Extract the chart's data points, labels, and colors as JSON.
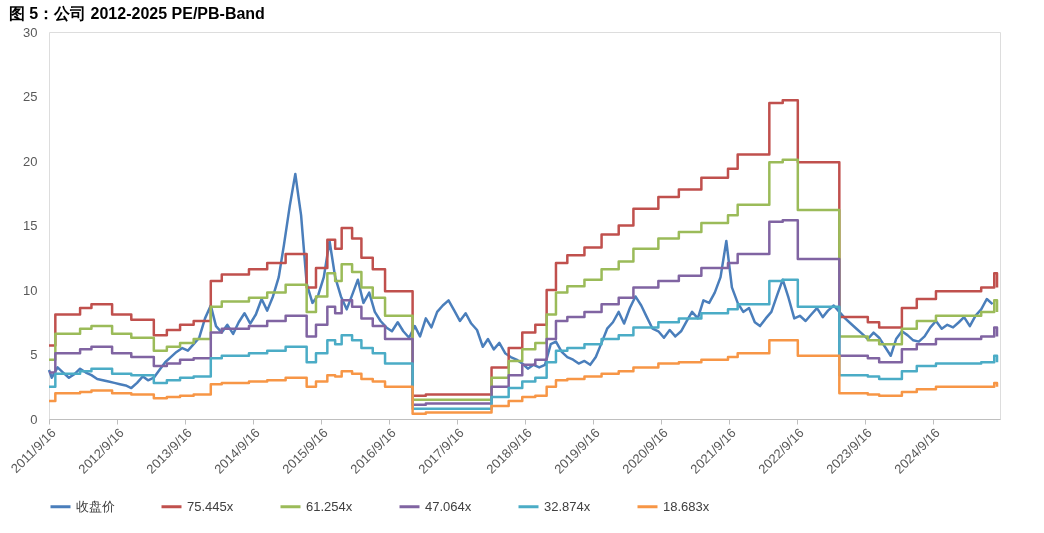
{
  "chart_data": {
    "type": "line",
    "title": "图 5：公司 2012-2025 PE/PB-Band",
    "xlim": [
      "2011-09-16",
      "2025-09-10"
    ],
    "ylim": [
      0,
      30
    ],
    "yticks": [
      0,
      5,
      10,
      15,
      20,
      25,
      30
    ],
    "xticks": [
      {
        "value": "2011-09-16",
        "label": "2011/9/16"
      },
      {
        "value": "2012-09-16",
        "label": "2012/9/16"
      },
      {
        "value": "2013-09-16",
        "label": "2013/9/16"
      },
      {
        "value": "2014-09-16",
        "label": "2014/9/16"
      },
      {
        "value": "2015-09-16",
        "label": "2015/9/16"
      },
      {
        "value": "2016-09-16",
        "label": "2016/9/16"
      },
      {
        "value": "2017-09-16",
        "label": "2017/9/16"
      },
      {
        "value": "2018-09-16",
        "label": "2018/9/16"
      },
      {
        "value": "2019-09-16",
        "label": "2019/9/16"
      },
      {
        "value": "2020-09-16",
        "label": "2020/9/16"
      },
      {
        "value": "2021-09-16",
        "label": "2021/9/16"
      },
      {
        "value": "2022-09-16",
        "label": "2022/9/16"
      },
      {
        "value": "2023-09-16",
        "label": "2023/9/16"
      },
      {
        "value": "2024-09-16",
        "label": "2024/9/16"
      }
    ],
    "grid": false,
    "legend": "bottom",
    "line_style": "solid",
    "marker": "none",
    "series": [
      {
        "name": "收盘价",
        "type": "line",
        "color": "#4a7ebb",
        "x": [
          "2011-09-16",
          "2011-10",
          "2011-11",
          "2011-12",
          "2012-01",
          "2012-02",
          "2012-03",
          "2012-04",
          "2012-05",
          "2012-06",
          "2012-07",
          "2012-08",
          "2012-09",
          "2012-10",
          "2012-11",
          "2012-12",
          "2013-01",
          "2013-02",
          "2013-03",
          "2013-04",
          "2013-05",
          "2013-06",
          "2013-07",
          "2013-08",
          "2013-09",
          "2013-10",
          "2013-11",
          "2013-12",
          "2014-01",
          "2014-02",
          "2014-03",
          "2014-04",
          "2014-05",
          "2014-06",
          "2014-07",
          "2014-08",
          "2014-09",
          "2014-10",
          "2014-11",
          "2014-12",
          "2015-01",
          "2015-02",
          "2015-03",
          "2015-04",
          "2015-05",
          "2015-05-20",
          "2015-06",
          "2015-07",
          "2015-08",
          "2015-09",
          "2015-10",
          "2015-11",
          "2015-12",
          "2016-01",
          "2016-02",
          "2016-03",
          "2016-04",
          "2016-05",
          "2016-06",
          "2016-07",
          "2016-08",
          "2016-09",
          "2016-10",
          "2016-11",
          "2016-12",
          "2017-01",
          "2017-02",
          "2017-03",
          "2017-04",
          "2017-05",
          "2017-06",
          "2017-07",
          "2017-08",
          "2017-09",
          "2017-10",
          "2017-11",
          "2017-12",
          "2018-01",
          "2018-02",
          "2018-03",
          "2018-04",
          "2018-05",
          "2018-06",
          "2018-07",
          "2018-08",
          "2018-09",
          "2018-10",
          "2018-11",
          "2018-12",
          "2019-01",
          "2019-02",
          "2019-03",
          "2019-04",
          "2019-05",
          "2019-06",
          "2019-07",
          "2019-08",
          "2019-09",
          "2019-10",
          "2019-11",
          "2019-12",
          "2020-01",
          "2020-02",
          "2020-03",
          "2020-04",
          "2020-05",
          "2020-06",
          "2020-07",
          "2020-08",
          "2020-09",
          "2020-10",
          "2020-11",
          "2020-12",
          "2021-01",
          "2021-02",
          "2021-03",
          "2021-04",
          "2021-05",
          "2021-06",
          "2021-07",
          "2021-08",
          "2021-09",
          "2021-10",
          "2021-11",
          "2021-12",
          "2022-01",
          "2022-02",
          "2022-03",
          "2022-04",
          "2022-05",
          "2022-06",
          "2022-07",
          "2022-08",
          "2022-09",
          "2022-10",
          "2022-11",
          "2022-12",
          "2023-01",
          "2023-02",
          "2023-03",
          "2023-04",
          "2023-05",
          "2023-06",
          "2023-07",
          "2023-08",
          "2023-09",
          "2023-10",
          "2023-11",
          "2023-12",
          "2024-01",
          "2024-02",
          "2024-03",
          "2024-04",
          "2024-05",
          "2024-06",
          "2024-07",
          "2024-08",
          "2024-09",
          "2024-10",
          "2024-11",
          "2024-12",
          "2025-01",
          "2025-02",
          "2025-03",
          "2025-04",
          "2025-05",
          "2025-06",
          "2025-07",
          "2025-08"
        ],
        "values": [
          3.8,
          3.2,
          4.0,
          3.6,
          3.2,
          3.5,
          3.9,
          3.6,
          3.4,
          3.1,
          3.0,
          2.9,
          2.8,
          2.7,
          2.6,
          2.4,
          2.8,
          3.3,
          3.0,
          3.2,
          3.8,
          4.4,
          4.8,
          5.2,
          5.5,
          5.3,
          5.8,
          6.3,
          7.8,
          8.8,
          7.2,
          6.7,
          7.3,
          6.6,
          7.5,
          8.2,
          7.4,
          8.1,
          9.3,
          8.4,
          9.5,
          11.0,
          13.5,
          16.5,
          19.0,
          17.0,
          15.8,
          10.5,
          9.0,
          9.6,
          11.0,
          13.8,
          11.0,
          9.5,
          8.5,
          9.6,
          10.8,
          9.0,
          9.8,
          8.3,
          7.6,
          7.1,
          6.8,
          7.5,
          6.8,
          6.3,
          7.2,
          6.4,
          7.8,
          7.1,
          8.3,
          8.8,
          9.2,
          8.4,
          7.6,
          8.2,
          7.4,
          6.9,
          5.6,
          6.2,
          5.4,
          5.9,
          5.1,
          4.8,
          4.6,
          4.3,
          3.9,
          4.2,
          4.0,
          4.2,
          5.8,
          6.0,
          5.2,
          4.8,
          4.6,
          4.3,
          4.5,
          4.2,
          4.8,
          5.9,
          7.0,
          7.5,
          8.3,
          7.4,
          8.6,
          9.5,
          8.8,
          7.9,
          7.0,
          6.8,
          6.3,
          6.9,
          6.4,
          6.8,
          7.6,
          8.3,
          7.8,
          9.2,
          9.0,
          9.8,
          11.0,
          13.8,
          10.2,
          9.0,
          8.3,
          8.6,
          7.5,
          7.2,
          7.8,
          8.3,
          9.6,
          10.8,
          9.4,
          7.8,
          8.0,
          7.6,
          8.1,
          8.6,
          7.9,
          8.4,
          8.8,
          8.3,
          7.8,
          7.4,
          7.0,
          6.6,
          6.2,
          6.7,
          6.3,
          5.6,
          4.9,
          6.2,
          6.8,
          6.5,
          6.1,
          6.0,
          6.4,
          7.1,
          7.6,
          7.0,
          7.3,
          7.1,
          7.5,
          7.9,
          7.2,
          8.0,
          8.5,
          9.3,
          8.9
        ]
      },
      {
        "name": "75.445x",
        "type": "step",
        "color": "#c0504d",
        "x": [
          "2011-09-16",
          "2011-10-20",
          "2012-03-01",
          "2012-05-01",
          "2012-08-20",
          "2012-12-01",
          "2013-04-01",
          "2013-06-10",
          "2013-08-20",
          "2013-11-01",
          "2014-02-01",
          "2014-04-01",
          "2014-08-25",
          "2014-12-01",
          "2015-03-10",
          "2015-07-01",
          "2015-08-20",
          "2015-10-20",
          "2015-12-01",
          "2016-01-05",
          "2016-03-01",
          "2016-04-20",
          "2016-06-20",
          "2016-08-25",
          "2017-01-20",
          "2017-04-01",
          "2018-03-20",
          "2018-06-20",
          "2018-09-01",
          "2018-11-10",
          "2019-01-10",
          "2019-03-01",
          "2019-05-01",
          "2019-08-01",
          "2019-11-01",
          "2020-02-01",
          "2020-04-20",
          "2020-09-01",
          "2020-12-20",
          "2021-04-20",
          "2021-09-10",
          "2021-11-01",
          "2022-04-20",
          "2022-07-01",
          "2022-09-20",
          "2023-05-01",
          "2023-10-01",
          "2023-12-01",
          "2024-04-01",
          "2024-06-20",
          "2024-10-01",
          "2025-06-01",
          "2025-08-10",
          "2025-08-25"
        ],
        "values": [
          5.7,
          8.1,
          8.6,
          8.9,
          8.1,
          7.7,
          6.5,
          6.9,
          7.3,
          7.6,
          10.7,
          11.2,
          11.6,
          12.1,
          12.8,
          10.2,
          11.7,
          13.9,
          13.2,
          14.8,
          14.0,
          12.5,
          11.6,
          9.9,
          1.8,
          1.9,
          4.0,
          5.5,
          6.7,
          7.3,
          10.0,
          12.1,
          12.7,
          13.3,
          14.3,
          15.0,
          16.3,
          17.2,
          17.8,
          18.7,
          19.4,
          20.5,
          24.5,
          24.7,
          19.9,
          7.9,
          7.5,
          7.1,
          8.6,
          9.3,
          9.9,
          10.2,
          11.3,
          10.2
        ]
      },
      {
        "name": "61.254x",
        "type": "step",
        "color": "#9bbb59",
        "x": [
          "2011-09-16",
          "2011-10-20",
          "2012-03-01",
          "2012-05-01",
          "2012-08-20",
          "2012-12-01",
          "2013-04-01",
          "2013-06-10",
          "2013-08-20",
          "2013-11-01",
          "2014-02-01",
          "2014-04-01",
          "2014-08-25",
          "2014-12-01",
          "2015-03-10",
          "2015-07-01",
          "2015-08-20",
          "2015-10-20",
          "2015-12-01",
          "2016-01-05",
          "2016-03-01",
          "2016-04-20",
          "2016-06-20",
          "2016-08-25",
          "2017-01-20",
          "2017-04-01",
          "2018-03-20",
          "2018-06-20",
          "2018-09-01",
          "2018-11-10",
          "2019-01-10",
          "2019-03-01",
          "2019-05-01",
          "2019-08-01",
          "2019-11-01",
          "2020-02-01",
          "2020-04-20",
          "2020-09-01",
          "2020-12-20",
          "2021-04-20",
          "2021-09-10",
          "2021-11-01",
          "2022-04-20",
          "2022-07-01",
          "2022-09-20",
          "2023-05-01",
          "2023-10-01",
          "2023-12-01",
          "2024-04-01",
          "2024-06-20",
          "2024-10-01",
          "2025-06-01",
          "2025-08-10",
          "2025-08-25"
        ],
        "values": [
          4.6,
          6.6,
          7.0,
          7.2,
          6.6,
          6.3,
          5.3,
          5.6,
          5.9,
          6.2,
          8.7,
          9.1,
          9.4,
          9.8,
          10.4,
          8.3,
          9.5,
          11.3,
          10.7,
          12.0,
          11.4,
          10.2,
          9.4,
          8.0,
          1.5,
          1.5,
          3.2,
          4.5,
          5.4,
          5.9,
          8.1,
          9.8,
          10.3,
          10.8,
          11.6,
          12.2,
          13.2,
          14.0,
          14.5,
          15.2,
          15.8,
          16.6,
          19.9,
          20.1,
          16.2,
          6.4,
          6.1,
          5.8,
          7.0,
          7.6,
          8.0,
          8.3,
          9.2,
          8.3
        ]
      },
      {
        "name": "47.064x",
        "type": "step",
        "color": "#8064a2",
        "x": [
          "2011-09-16",
          "2011-10-20",
          "2012-03-01",
          "2012-05-01",
          "2012-08-20",
          "2012-12-01",
          "2013-04-01",
          "2013-06-10",
          "2013-08-20",
          "2013-11-01",
          "2014-02-01",
          "2014-04-01",
          "2014-08-25",
          "2014-12-01",
          "2015-03-10",
          "2015-07-01",
          "2015-08-20",
          "2015-10-20",
          "2015-12-01",
          "2016-01-05",
          "2016-03-01",
          "2016-04-20",
          "2016-06-20",
          "2016-08-25",
          "2017-01-20",
          "2017-04-01",
          "2018-03-20",
          "2018-06-20",
          "2018-09-01",
          "2018-11-10",
          "2019-01-10",
          "2019-03-01",
          "2019-05-01",
          "2019-08-01",
          "2019-11-01",
          "2020-02-01",
          "2020-04-20",
          "2020-09-01",
          "2020-12-20",
          "2021-04-20",
          "2021-09-10",
          "2021-11-01",
          "2022-04-20",
          "2022-07-01",
          "2022-09-20",
          "2023-05-01",
          "2023-10-01",
          "2023-12-01",
          "2024-04-01",
          "2024-06-20",
          "2024-10-01",
          "2025-06-01",
          "2025-08-10",
          "2025-08-25"
        ],
        "values": [
          3.6,
          5.1,
          5.4,
          5.6,
          5.1,
          4.8,
          4.1,
          4.3,
          4.6,
          4.7,
          6.7,
          7.0,
          7.2,
          7.6,
          8.0,
          6.4,
          7.3,
          8.7,
          8.2,
          9.2,
          8.7,
          7.8,
          7.2,
          6.2,
          1.1,
          1.2,
          2.5,
          3.4,
          4.2,
          4.6,
          6.2,
          7.6,
          7.9,
          8.3,
          8.9,
          9.4,
          10.2,
          10.7,
          11.1,
          11.7,
          12.1,
          12.8,
          15.3,
          15.4,
          12.4,
          4.9,
          4.7,
          4.4,
          5.4,
          5.8,
          6.2,
          6.4,
          7.1,
          6.4
        ]
      },
      {
        "name": "32.874x",
        "type": "step",
        "color": "#4bacc6",
        "x": [
          "2011-09-16",
          "2011-10-20",
          "2012-03-01",
          "2012-05-01",
          "2012-08-20",
          "2012-12-01",
          "2013-04-01",
          "2013-06-10",
          "2013-08-20",
          "2013-11-01",
          "2014-02-01",
          "2014-04-01",
          "2014-08-25",
          "2014-12-01",
          "2015-03-10",
          "2015-07-01",
          "2015-08-20",
          "2015-10-20",
          "2015-12-01",
          "2016-01-05",
          "2016-03-01",
          "2016-04-20",
          "2016-06-20",
          "2016-08-25",
          "2017-01-20",
          "2017-04-01",
          "2018-03-20",
          "2018-06-20",
          "2018-09-01",
          "2018-11-10",
          "2019-01-10",
          "2019-03-01",
          "2019-05-01",
          "2019-08-01",
          "2019-11-01",
          "2020-02-01",
          "2020-04-20",
          "2020-09-01",
          "2020-12-20",
          "2021-04-20",
          "2021-09-10",
          "2021-11-01",
          "2022-04-20",
          "2022-07-01",
          "2022-09-20",
          "2023-05-01",
          "2023-10-01",
          "2023-12-01",
          "2024-04-01",
          "2024-06-20",
          "2024-10-01",
          "2025-06-01",
          "2025-08-10",
          "2025-08-25"
        ],
        "values": [
          2.5,
          3.5,
          3.7,
          3.9,
          3.5,
          3.4,
          2.8,
          3.0,
          3.2,
          3.3,
          4.7,
          4.9,
          5.1,
          5.3,
          5.6,
          4.4,
          5.1,
          6.1,
          5.8,
          6.5,
          6.1,
          5.5,
          5.1,
          4.3,
          0.8,
          0.8,
          1.7,
          2.4,
          2.9,
          3.2,
          4.4,
          5.3,
          5.5,
          5.8,
          6.2,
          6.5,
          7.1,
          7.5,
          7.8,
          8.2,
          8.5,
          8.9,
          10.7,
          10.8,
          8.7,
          3.4,
          3.3,
          3.1,
          3.7,
          4.1,
          4.3,
          4.4,
          4.9,
          4.4
        ]
      },
      {
        "name": "18.683x",
        "type": "step",
        "color": "#f79646",
        "x": [
          "2011-09-16",
          "2011-10-20",
          "2012-03-01",
          "2012-05-01",
          "2012-08-20",
          "2012-12-01",
          "2013-04-01",
          "2013-06-10",
          "2013-08-20",
          "2013-11-01",
          "2014-02-01",
          "2014-04-01",
          "2014-08-25",
          "2014-12-01",
          "2015-03-10",
          "2015-07-01",
          "2015-08-20",
          "2015-10-20",
          "2015-12-01",
          "2016-01-05",
          "2016-03-01",
          "2016-04-20",
          "2016-06-20",
          "2016-08-25",
          "2017-01-20",
          "2017-04-01",
          "2018-03-20",
          "2018-06-20",
          "2018-09-01",
          "2018-11-10",
          "2019-01-10",
          "2019-03-01",
          "2019-05-01",
          "2019-08-01",
          "2019-11-01",
          "2020-02-01",
          "2020-04-20",
          "2020-09-01",
          "2020-12-20",
          "2021-04-20",
          "2021-09-10",
          "2021-11-01",
          "2022-04-20",
          "2022-07-01",
          "2022-09-20",
          "2023-05-01",
          "2023-10-01",
          "2023-12-01",
          "2024-04-01",
          "2024-06-20",
          "2024-10-01",
          "2025-06-01",
          "2025-08-10",
          "2025-08-25"
        ],
        "values": [
          1.4,
          2.0,
          2.1,
          2.2,
          2.0,
          1.9,
          1.6,
          1.7,
          1.8,
          1.9,
          2.7,
          2.8,
          2.9,
          3.0,
          3.2,
          2.5,
          2.9,
          3.4,
          3.3,
          3.7,
          3.5,
          3.1,
          2.9,
          2.5,
          0.4,
          0.5,
          1.0,
          1.4,
          1.7,
          1.8,
          2.5,
          3.0,
          3.1,
          3.3,
          3.5,
          3.7,
          4.0,
          4.3,
          4.4,
          4.6,
          4.8,
          5.1,
          6.1,
          6.1,
          4.9,
          2.0,
          1.9,
          1.8,
          2.1,
          2.3,
          2.5,
          2.5,
          2.8,
          2.5
        ]
      }
    ]
  }
}
